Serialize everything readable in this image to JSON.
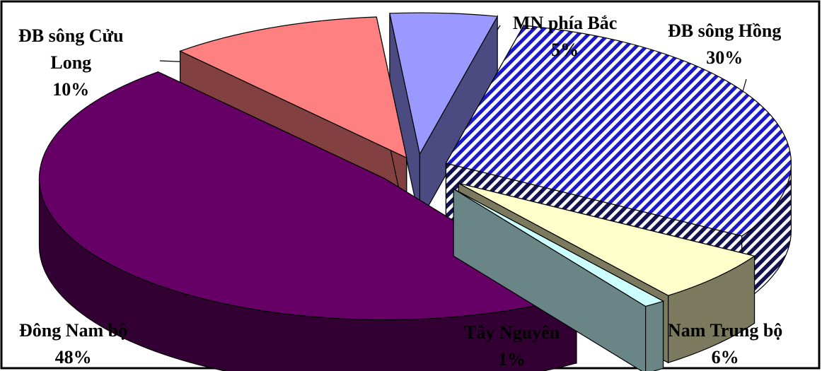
{
  "chart_data": {
    "type": "pie",
    "title": "",
    "slices": [
      {
        "name": "MN phía Bắc",
        "value": 5,
        "label": "5%",
        "top_color": "#9999ff",
        "side_color": "#4b4b82",
        "pattern": "none"
      },
      {
        "name": "ĐB sông Hồng",
        "value": 30,
        "label": "30%",
        "top_color": "#1a1acc",
        "side_color": "#13134f",
        "pattern": "diagonal-stripes"
      },
      {
        "name": "Nam Trung bộ",
        "value": 6,
        "label": "6%",
        "top_color": "#ffffcc",
        "side_color": "#7b7a5e",
        "pattern": "none"
      },
      {
        "name": "Tây Nguyên",
        "value": 1,
        "label": "1%",
        "top_color": "#ccffff",
        "side_color": "#6a8586",
        "pattern": "none"
      },
      {
        "name": "Đông Nam bộ",
        "value": 48,
        "label": "48%",
        "top_color": "#660066",
        "side_color": "#330033",
        "pattern": "none"
      },
      {
        "name": "ĐB sông Cửu Long",
        "value": 10,
        "label": "10%",
        "top_color": "#ff8080",
        "side_color": "#824040",
        "pattern": "none"
      }
    ],
    "legend": "none",
    "style": "3d-exploded-pie"
  },
  "labels": {
    "mn": {
      "name": "MN phía Bắc",
      "pct": "5%"
    },
    "dbsh": {
      "name_line1": "ĐB sông Hồng",
      "pct": "30%"
    },
    "cuulong": {
      "name_line1": "ĐB sông Cửu",
      "name_line2": "Long",
      "pct": "10%"
    },
    "dnb": {
      "name": "Đông Nam bộ",
      "pct": "48%"
    },
    "tn": {
      "name": "Tây Nguyên",
      "pct": "1%"
    },
    "ntb": {
      "name": "Nam Trung bộ",
      "pct": "6%"
    }
  },
  "frame_color": "#000000"
}
